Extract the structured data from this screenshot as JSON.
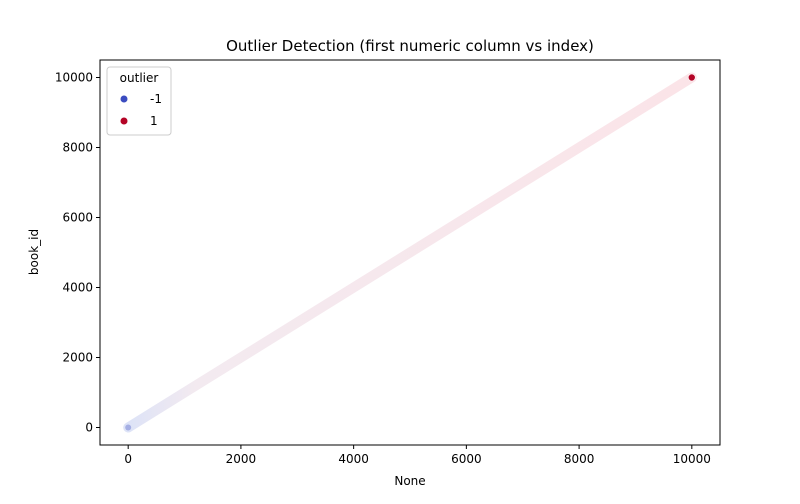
{
  "chart_data": {
    "type": "scatter",
    "title": "Outlier Detection (first numeric column vs index)",
    "xlabel": "None",
    "ylabel": "book_id",
    "xlim": [
      -500,
      10500
    ],
    "ylim": [
      -500,
      10500
    ],
    "x_ticks": [
      0,
      2000,
      4000,
      6000,
      8000,
      10000
    ],
    "y_ticks": [
      0,
      2000,
      4000,
      6000,
      8000,
      10000
    ],
    "grid": false,
    "legend": {
      "title": "outlier",
      "placement": "top-left",
      "entries": [
        {
          "label": "-1",
          "color": "#3b4cc0"
        },
        {
          "label": "1",
          "color": "#b40426"
        }
      ]
    },
    "series": [
      {
        "name": "-1",
        "color": "#3b4cc0",
        "points": [
          [
            0,
            1
          ]
        ]
      },
      {
        "name": "1",
        "color": "#b40426",
        "density_band": {
          "from": [
            0,
            1
          ],
          "to": [
            9999,
            10000
          ]
        },
        "points": [
          [
            9999,
            10000
          ]
        ]
      }
    ]
  }
}
